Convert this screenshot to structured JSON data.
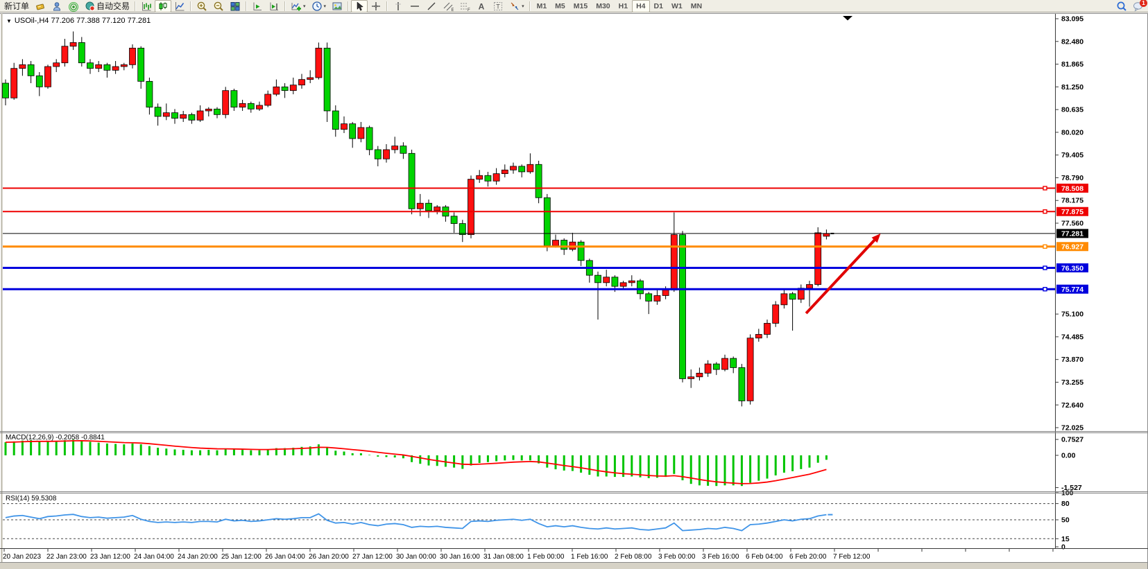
{
  "toolbar": {
    "items": [
      {
        "name": "new-order-button",
        "label": "新订单"
      },
      {
        "name": "charts-bar-button",
        "icon": "gold-tag"
      },
      {
        "name": "support-button",
        "icon": "support-person"
      },
      {
        "name": "signals-button",
        "icon": "signal"
      },
      {
        "name": "auto-trading-button",
        "icon": "autotrade",
        "label": "自动交易"
      },
      {
        "name": "separator",
        "sep": true
      },
      {
        "name": "bar-chart-button",
        "icon": "bars"
      },
      {
        "name": "candle-chart-button",
        "icon": "candles",
        "active": true
      },
      {
        "name": "line-chart-button",
        "icon": "line"
      },
      {
        "name": "separator",
        "sep": true
      },
      {
        "name": "zoom-in-button",
        "icon": "zoom-in"
      },
      {
        "name": "zoom-out-button",
        "icon": "zoom-out"
      },
      {
        "name": "tile-windows-button",
        "icon": "tile"
      },
      {
        "name": "separator",
        "sep": true
      },
      {
        "name": "auto-scroll-button",
        "icon": "autoscroll"
      },
      {
        "name": "chart-shift-button",
        "icon": "chartshift"
      },
      {
        "name": "separator",
        "sep": true
      },
      {
        "name": "indicators-button",
        "icon": "indicator-add",
        "caret": true
      },
      {
        "name": "periods-button",
        "icon": "clock",
        "caret": true
      },
      {
        "name": "templates-button",
        "icon": "template"
      },
      {
        "name": "separator",
        "sep": true
      },
      {
        "name": "cursor-button",
        "icon": "cursor",
        "active": true
      },
      {
        "name": "crosshair-button",
        "icon": "crosshair"
      },
      {
        "name": "separator",
        "sep": true
      },
      {
        "name": "vertical-line-button",
        "icon": "vline"
      },
      {
        "name": "horizontal-line-button",
        "icon": "hline"
      },
      {
        "name": "trendline-button",
        "icon": "trendline"
      },
      {
        "name": "channel-button",
        "icon": "channel"
      },
      {
        "name": "fibonacci-button",
        "icon": "fibo"
      },
      {
        "name": "text-button",
        "icon": "text-a"
      },
      {
        "name": "text-label-button",
        "icon": "text-t"
      },
      {
        "name": "arrows-button",
        "icon": "arrows",
        "caret": true
      },
      {
        "name": "separator",
        "sep": true
      },
      {
        "name": "timeframe-m1-button",
        "label": "M1",
        "tf": true
      },
      {
        "name": "timeframe-m5-button",
        "label": "M5",
        "tf": true
      },
      {
        "name": "timeframe-m15-button",
        "label": "M15",
        "tf": true
      },
      {
        "name": "timeframe-m30-button",
        "label": "M30",
        "tf": true
      },
      {
        "name": "timeframe-h1-button",
        "label": "H1",
        "tf": true
      },
      {
        "name": "timeframe-h4-button",
        "label": "H4",
        "tf": true,
        "active": true
      },
      {
        "name": "timeframe-d1-button",
        "label": "D1",
        "tf": true
      },
      {
        "name": "timeframe-w1-button",
        "label": "W1",
        "tf": true
      },
      {
        "name": "timeframe-mn-button",
        "label": "MN",
        "tf": true
      },
      {
        "name": "toolbar-spacer",
        "spacer": true
      },
      {
        "name": "search-button",
        "icon": "search"
      },
      {
        "name": "notifications-button",
        "icon": "chat",
        "badge": "1"
      }
    ]
  },
  "chart": {
    "title": "USOil-,H4  77.206 77.388 77.120 77.281",
    "symbol": "USOil-",
    "period": "H4",
    "open": "77.206",
    "high": "77.388",
    "low": "77.120",
    "close": "77.281"
  },
  "macd": {
    "name": "MACD(12,26,9)",
    "values": "-0.2058 -0.8841",
    "axis_labels": [
      "0.7527",
      "0.00",
      "-1.527"
    ],
    "axis_values": [
      0.7527,
      0,
      -1.527
    ]
  },
  "rsi": {
    "name": "RSI(14)",
    "value": "59.5308",
    "axis_labels": [
      "100",
      "80",
      "50",
      "15",
      "0"
    ],
    "axis_values": [
      100,
      80,
      50,
      15,
      0
    ],
    "dashed_levels": [
      80,
      50,
      15
    ]
  },
  "price_axis": {
    "ticks": [
      "83.095",
      "82.480",
      "81.865",
      "81.250",
      "80.635",
      "80.020",
      "79.405",
      "78.790",
      "78.175",
      "77.560",
      "75.100",
      "74.485",
      "73.870",
      "73.255",
      "72.640",
      "72.025"
    ],
    "tick_values": [
      83.095,
      82.48,
      81.865,
      81.25,
      80.635,
      80.02,
      79.405,
      78.79,
      78.175,
      77.56,
      75.1,
      74.485,
      73.87,
      73.255,
      72.64,
      72.025
    ]
  },
  "chart_data": {
    "type": "candlestick",
    "title": "USOil- H4",
    "color_convention": "red = bullish (up), green = bearish (down)",
    "ylim": [
      72.025,
      83.095
    ],
    "candles": [
      [
        81.35,
        81.45,
        80.75,
        80.95
      ],
      [
        80.95,
        81.9,
        80.9,
        81.75
      ],
      [
        81.75,
        82,
        81.55,
        81.85
      ],
      [
        81.85,
        81.95,
        81.35,
        81.55
      ],
      [
        81.55,
        81.65,
        81,
        81.25
      ],
      [
        81.25,
        81.85,
        81.2,
        81.8
      ],
      [
        81.8,
        82,
        81.65,
        81.9
      ],
      [
        81.9,
        82.55,
        81.8,
        82.35
      ],
      [
        82.35,
        82.75,
        82.25,
        82.45
      ],
      [
        82.45,
        82.6,
        81.8,
        81.9
      ],
      [
        81.9,
        82,
        81.6,
        81.75
      ],
      [
        81.75,
        81.95,
        81.65,
        81.85
      ],
      [
        81.85,
        81.9,
        81.5,
        81.7
      ],
      [
        81.7,
        81.95,
        81.6,
        81.8
      ],
      [
        81.8,
        81.9,
        81.7,
        81.85
      ],
      [
        81.85,
        82.4,
        81.75,
        82.3
      ],
      [
        82.3,
        82.35,
        81.2,
        81.4
      ],
      [
        81.4,
        81.5,
        80.5,
        80.7
      ],
      [
        80.7,
        80.8,
        80.2,
        80.45
      ],
      [
        80.45,
        80.8,
        80.35,
        80.55
      ],
      [
        80.55,
        80.65,
        80.25,
        80.4
      ],
      [
        80.4,
        80.6,
        80.3,
        80.5
      ],
      [
        80.5,
        80.55,
        80.25,
        80.35
      ],
      [
        80.35,
        80.75,
        80.3,
        80.6
      ],
      [
        80.6,
        80.7,
        80.45,
        80.65
      ],
      [
        80.65,
        80.7,
        80.4,
        80.5
      ],
      [
        80.5,
        81.25,
        80.4,
        81.15
      ],
      [
        81.15,
        81.2,
        80.6,
        80.7
      ],
      [
        80.7,
        80.9,
        80.6,
        80.8
      ],
      [
        80.8,
        80.85,
        80.55,
        80.65
      ],
      [
        80.65,
        80.85,
        80.6,
        80.75
      ],
      [
        80.75,
        81.15,
        80.7,
        81.05
      ],
      [
        81.05,
        81.45,
        81,
        81.25
      ],
      [
        81.25,
        81.35,
        80.95,
        81.15
      ],
      [
        81.15,
        81.5,
        81.05,
        81.3
      ],
      [
        81.3,
        81.6,
        81.2,
        81.45
      ],
      [
        81.45,
        81.7,
        81.35,
        81.5
      ],
      [
        81.5,
        82.45,
        81.45,
        82.3
      ],
      [
        82.3,
        82.45,
        80.3,
        80.6
      ],
      [
        80.6,
        80.75,
        79.9,
        80.1
      ],
      [
        80.1,
        80.45,
        80,
        80.25
      ],
      [
        80.25,
        80.3,
        79.6,
        79.85
      ],
      [
        79.85,
        80.3,
        79.75,
        80.15
      ],
      [
        80.15,
        80.2,
        79.4,
        79.55
      ],
      [
        79.55,
        79.65,
        79.1,
        79.3
      ],
      [
        79.3,
        79.7,
        79.2,
        79.55
      ],
      [
        79.55,
        79.9,
        79.45,
        79.65
      ],
      [
        79.65,
        79.75,
        79.3,
        79.45
      ],
      [
        79.45,
        79.55,
        77.8,
        77.95
      ],
      [
        77.95,
        78.35,
        77.75,
        78.1
      ],
      [
        78.1,
        78.2,
        77.7,
        77.9
      ],
      [
        77.9,
        78.05,
        77.8,
        78
      ],
      [
        78,
        78.05,
        77.6,
        77.75
      ],
      [
        77.75,
        77.85,
        77.3,
        77.55
      ],
      [
        77.55,
        77.65,
        77.05,
        77.25
      ],
      [
        77.25,
        78.85,
        77.15,
        78.75
      ],
      [
        78.75,
        79,
        78.65,
        78.85
      ],
      [
        78.85,
        78.95,
        78.55,
        78.7
      ],
      [
        78.7,
        79.05,
        78.6,
        78.9
      ],
      [
        78.9,
        79.15,
        78.8,
        79
      ],
      [
        79,
        79.2,
        78.9,
        79.1
      ],
      [
        79.1,
        79.15,
        78.8,
        78.95
      ],
      [
        78.95,
        79.45,
        78.9,
        79.15
      ],
      [
        79.15,
        79.25,
        78.1,
        78.25
      ],
      [
        78.25,
        78.35,
        76.8,
        76.95
      ],
      [
        76.95,
        77.25,
        76.9,
        77.1
      ],
      [
        77.1,
        77.15,
        76.7,
        76.85
      ],
      [
        76.85,
        77.3,
        76.8,
        77.05
      ],
      [
        77.05,
        77.1,
        76.4,
        76.55
      ],
      [
        76.55,
        76.6,
        75.95,
        76.15
      ],
      [
        76.15,
        76.25,
        74.95,
        75.95
      ],
      [
        75.95,
        76.3,
        75.85,
        76.1
      ],
      [
        76.1,
        76.15,
        75.7,
        75.85
      ],
      [
        75.85,
        76,
        75.75,
        75.95
      ],
      [
        75.95,
        76.15,
        75.85,
        76
      ],
      [
        76,
        76.05,
        75.5,
        75.65
      ],
      [
        75.65,
        75.7,
        75.1,
        75.45
      ],
      [
        75.45,
        75.75,
        75.35,
        75.6
      ],
      [
        75.6,
        75.85,
        75.5,
        75.75
      ],
      [
        75.75,
        77.85,
        75.7,
        77.25
      ],
      [
        77.25,
        77.35,
        73.25,
        73.35
      ],
      [
        73.35,
        73.6,
        73.1,
        73.4
      ],
      [
        73.4,
        73.65,
        73.3,
        73.5
      ],
      [
        73.5,
        73.85,
        73.4,
        73.75
      ],
      [
        73.75,
        73.8,
        73.45,
        73.6
      ],
      [
        73.6,
        74,
        73.55,
        73.9
      ],
      [
        73.9,
        73.95,
        73.5,
        73.65
      ],
      [
        73.65,
        73.75,
        72.6,
        72.75
      ],
      [
        72.75,
        74.55,
        72.65,
        74.45
      ],
      [
        74.45,
        74.7,
        74.35,
        74.55
      ],
      [
        74.55,
        74.95,
        74.45,
        74.85
      ],
      [
        74.85,
        75.45,
        74.75,
        75.35
      ],
      [
        75.35,
        75.75,
        75.25,
        75.65
      ],
      [
        75.65,
        75.7,
        74.65,
        75.5
      ],
      [
        75.5,
        75.9,
        75.4,
        75.8
      ],
      [
        75.8,
        76,
        75.3,
        75.9
      ],
      [
        75.9,
        77.45,
        75.85,
        77.3
      ],
      [
        77.206,
        77.388,
        77.12,
        77.281
      ]
    ],
    "indicators": {
      "macd_histogram": [
        0.62,
        0.66,
        0.7,
        0.72,
        0.68,
        0.66,
        0.68,
        0.72,
        0.74,
        0.7,
        0.64,
        0.6,
        0.56,
        0.54,
        0.52,
        0.56,
        0.52,
        0.44,
        0.36,
        0.32,
        0.28,
        0.26,
        0.24,
        0.24,
        0.26,
        0.24,
        0.3,
        0.28,
        0.26,
        0.24,
        0.24,
        0.28,
        0.34,
        0.34,
        0.36,
        0.4,
        0.42,
        0.52,
        0.36,
        0.22,
        0.18,
        0.1,
        0.1,
        0.02,
        -0.06,
        -0.08,
        -0.1,
        -0.14,
        -0.32,
        -0.4,
        -0.48,
        -0.5,
        -0.54,
        -0.58,
        -0.64,
        -0.48,
        -0.36,
        -0.32,
        -0.28,
        -0.24,
        -0.22,
        -0.24,
        -0.24,
        -0.38,
        -0.58,
        -0.66,
        -0.72,
        -0.74,
        -0.82,
        -0.92,
        -1,
        -1,
        -1.02,
        -1.02,
        -1,
        -1.04,
        -1.08,
        -1.06,
        -1.02,
        -0.88,
        -1.18,
        -1.35,
        -1.42,
        -1.44,
        -1.45,
        -1.42,
        -1.42,
        -1.45,
        -1.3,
        -1.2,
        -1.1,
        -0.95,
        -0.82,
        -0.75,
        -0.65,
        -0.58,
        -0.35,
        -0.21
      ],
      "macd_ylim": [
        -1.527,
        0.7527
      ],
      "rsi_values": [
        54,
        57,
        58,
        55,
        52,
        56,
        57,
        59,
        60,
        56,
        54,
        55,
        53,
        54,
        55,
        58,
        51,
        47,
        45,
        46,
        45,
        46,
        45,
        47,
        47,
        46,
        51,
        48,
        49,
        47,
        48,
        50,
        52,
        51,
        52,
        54,
        54,
        61,
        49,
        44,
        45,
        42,
        45,
        41,
        39,
        42,
        43,
        41,
        36,
        38,
        37,
        38,
        36,
        35,
        34,
        47,
        48,
        47,
        49,
        50,
        51,
        49,
        51,
        43,
        37,
        39,
        37,
        39,
        36,
        34,
        33,
        35,
        33,
        34,
        35,
        32,
        31,
        33,
        35,
        44,
        30,
        31,
        32,
        34,
        33,
        36,
        34,
        30,
        41,
        42,
        44,
        47,
        50,
        48,
        51,
        52,
        57,
        59.5
      ],
      "rsi_ylim": [
        0,
        100
      ]
    },
    "levels": [
      {
        "price": 78.508,
        "label": "78.508",
        "color": "#ee0000",
        "width": 2,
        "handle": true,
        "name": "resistance-line-1"
      },
      {
        "price": 77.875,
        "label": "77.875",
        "color": "#ee0000",
        "width": 2,
        "handle": true,
        "name": "resistance-line-2"
      },
      {
        "price": 77.281,
        "label": "77.281",
        "color": "#000000",
        "width": 1,
        "handle": false,
        "name": "current-price-line"
      },
      {
        "price": 76.927,
        "label": "76.927",
        "color": "#ff8a00",
        "width": 3,
        "handle": true,
        "name": "support-line-1"
      },
      {
        "price": 76.35,
        "label": "76.350",
        "color": "#0000dd",
        "width": 3,
        "handle": true,
        "name": "support-line-2"
      },
      {
        "price": 75.774,
        "label": "75.774",
        "color": "#0000dd",
        "width": 3,
        "handle": true,
        "name": "support-line-3"
      }
    ],
    "time_labels": [
      "20 Jan 2023",
      "22 Jan 23:00",
      "23 Jan 12:00",
      "24 Jan 04:00",
      "24 Jan 20:00",
      "25 Jan 12:00",
      "26 Jan 04:00",
      "26 Jan 20:00",
      "27 Jan 12:00",
      "30 Jan 00:00",
      "30 Jan 16:00",
      "31 Jan 08:00",
      "1 Feb 00:00",
      "1 Feb 16:00",
      "2 Feb 08:00",
      "3 Feb 00:00",
      "3 Feb 16:00",
      "6 Feb 04:00",
      "6 Feb 20:00",
      "7 Feb 12:00"
    ],
    "annotations": {
      "trend_arrow": {
        "from": {
          "bar": 94.6,
          "price": 75.12
        },
        "to": {
          "bar": 103.4,
          "price": 77.28
        },
        "color": "#e00000"
      },
      "shift_marker": true
    },
    "colors": {
      "bull": "#ff1010",
      "bear": "#00d400",
      "wick": "#000000",
      "macd_bar": "#00c400",
      "macd_signal": "#ff0000",
      "rsi_line": "#3f94e8"
    }
  }
}
